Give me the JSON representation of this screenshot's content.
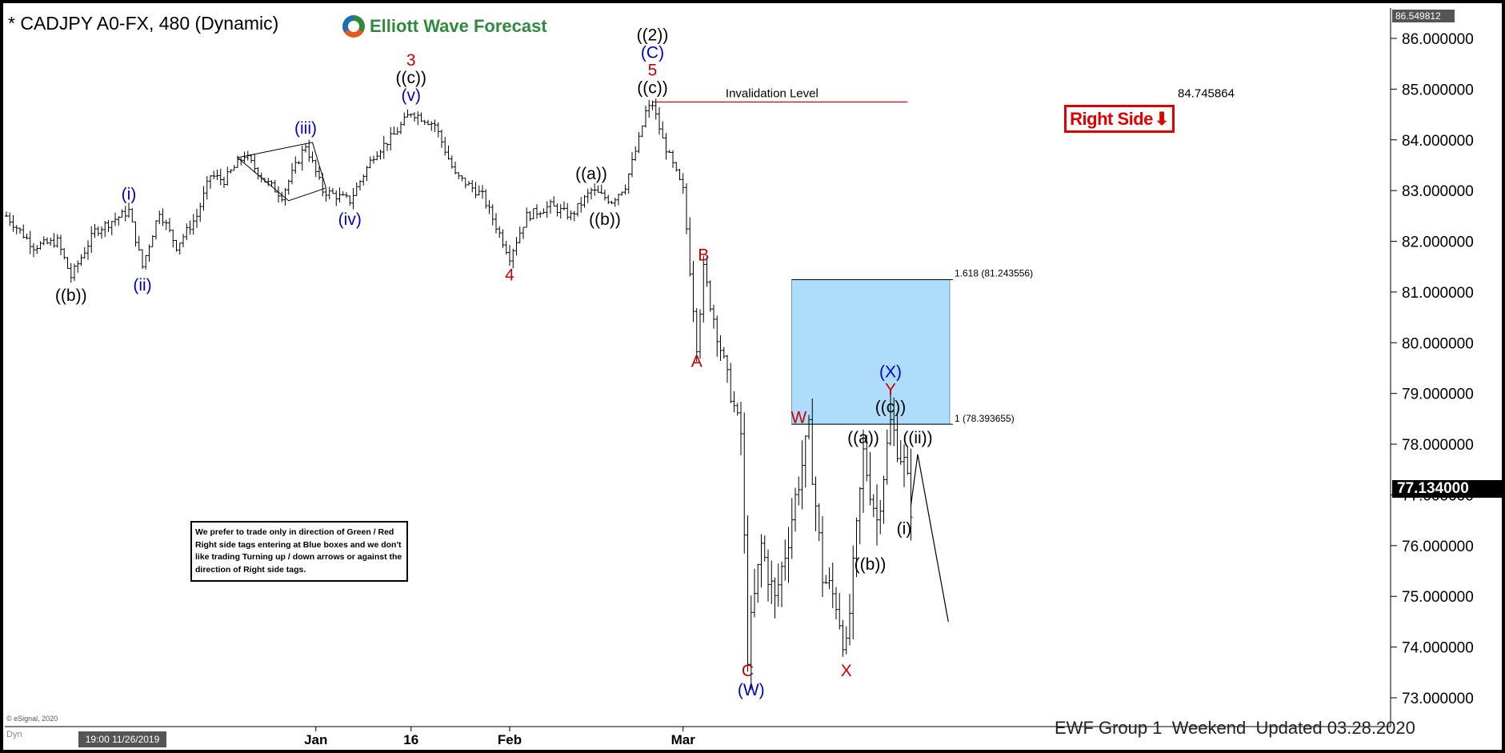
{
  "header": {
    "title": "* CADJPY A0-FX, 480 (Dynamic)",
    "brand": "Elliott Wave Forecast"
  },
  "note": {
    "text": "We prefer to trade only in direction of Green / Red Right side tags entering at Blue boxes and we don't like trading Turning up / down arrows or against the direction of Right side tags."
  },
  "right_side_tag": {
    "label": "Right Side",
    "icon": "down-arrow-icon",
    "color": "#e00000"
  },
  "footer": {
    "text": "EWF Group 1  Weekend  Updated 03.28.2020"
  },
  "watermark": "© eSignal, 2020",
  "status": {
    "dyn": "Dyn",
    "cursor_time": "19:00 11/26/2019"
  },
  "price_tags": {
    "top": "86.549812",
    "last": "77.134000"
  },
  "chart_data": {
    "type": "candlestick",
    "symbol": "CADJPY",
    "timeframe": "480",
    "ylim": [
      72.4,
      86.8
    ],
    "y_ticks": [
      "86.000000",
      "85.000000",
      "84.000000",
      "83.000000",
      "82.000000",
      "81.000000",
      "80.000000",
      "79.000000",
      "78.000000",
      "77.000000",
      "76.000000",
      "75.000000",
      "74.000000",
      "73.000000"
    ],
    "y_tick_values": [
      86,
      85,
      84,
      83,
      82,
      81,
      80,
      79,
      78,
      77,
      76,
      75,
      74,
      73
    ],
    "x_ticks": [
      {
        "label": "Jan",
        "bar": 91
      },
      {
        "label": "16",
        "bar": 119
      },
      {
        "label": "Feb",
        "bar": 148
      },
      {
        "label": "Mar",
        "bar": 199
      }
    ],
    "bar_count": 260,
    "path": [
      [
        0,
        82.5
      ],
      [
        8,
        81.9
      ],
      [
        15,
        82.0
      ],
      [
        19,
        81.3
      ],
      [
        26,
        82.2
      ],
      [
        36,
        82.6
      ],
      [
        40,
        81.5
      ],
      [
        45,
        82.6
      ],
      [
        50,
        81.9
      ],
      [
        56,
        82.5
      ],
      [
        60,
        83.3
      ],
      [
        64,
        83.2
      ],
      [
        70,
        83.7
      ],
      [
        76,
        83.2
      ],
      [
        81,
        82.9
      ],
      [
        88,
        83.9
      ],
      [
        93,
        83.0
      ],
      [
        101,
        82.8
      ],
      [
        108,
        83.7
      ],
      [
        114,
        84.1
      ],
      [
        119,
        84.55
      ],
      [
        126,
        84.3
      ],
      [
        132,
        83.3
      ],
      [
        140,
        82.9
      ],
      [
        148,
        81.7
      ],
      [
        153,
        82.5
      ],
      [
        160,
        82.7
      ],
      [
        166,
        82.5
      ],
      [
        172,
        83.0
      ],
      [
        178,
        82.8
      ],
      [
        182,
        83.1
      ],
      [
        186,
        84.0
      ],
      [
        188,
        84.55
      ],
      [
        190,
        84.7
      ],
      [
        193,
        84.0
      ],
      [
        199,
        83.0
      ],
      [
        203,
        80.0
      ],
      [
        205,
        81.4
      ],
      [
        208,
        80.5
      ],
      [
        213,
        79.0
      ],
      [
        216,
        78.2
      ],
      [
        218,
        73.9
      ],
      [
        222,
        76.0
      ],
      [
        226,
        74.9
      ],
      [
        230,
        76.2
      ],
      [
        233,
        77.3
      ],
      [
        236,
        78.2
      ],
      [
        240,
        75.4
      ],
      [
        244,
        74.9
      ],
      [
        247,
        73.9
      ],
      [
        252,
        77.8
      ],
      [
        256,
        76.5
      ],
      [
        260,
        78.4
      ],
      [
        264,
        77.6
      ],
      [
        266,
        76.8
      ]
    ],
    "projection": [
      [
        266,
        76.8
      ],
      [
        268,
        77.8
      ],
      [
        277,
        74.5
      ]
    ],
    "invalidation": {
      "label": "Invalidation Level",
      "value": 84.745864,
      "value_label": "84.745864",
      "color": "#e00000"
    },
    "target_box": {
      "low": 78.393655,
      "high": 81.243556,
      "low_label": "1 (78.393655)",
      "high_label": "1.618 (81.243556)",
      "color": "#aedcfb"
    },
    "wave_labels": [
      {
        "text": "((b))",
        "bar": 19,
        "price": 81.3,
        "pos": "below",
        "color": "#000"
      },
      {
        "text": "(i)",
        "bar": 36,
        "price": 82.6,
        "pos": "above",
        "color": "#0000cc"
      },
      {
        "text": "(ii)",
        "bar": 40,
        "price": 81.5,
        "pos": "below",
        "color": "#0000cc"
      },
      {
        "text": "(iii)",
        "bar": 88,
        "price": 83.9,
        "pos": "above",
        "color": "#0000cc"
      },
      {
        "text": "(iv)",
        "bar": 101,
        "price": 82.8,
        "pos": "below",
        "color": "#0000cc"
      },
      {
        "text": "3",
        "bar": 119,
        "price": 84.55,
        "pos": "above3",
        "color": "#cc0000"
      },
      {
        "text": "((c))",
        "bar": 119,
        "price": 84.55,
        "pos": "above2",
        "color": "#000"
      },
      {
        "text": "(v)",
        "bar": 119,
        "price": 84.55,
        "pos": "above",
        "color": "#0000cc"
      },
      {
        "text": "4",
        "bar": 148,
        "price": 81.7,
        "pos": "below",
        "color": "#cc0000"
      },
      {
        "text": "((a))",
        "bar": 172,
        "price": 83.0,
        "pos": "above",
        "color": "#000"
      },
      {
        "text": "((b))",
        "bar": 176,
        "price": 82.8,
        "pos": "below",
        "color": "#000"
      },
      {
        "text": "((2))",
        "bar": 190,
        "price": 84.7,
        "pos": "above4",
        "color": "#000"
      },
      {
        "text": "(C)",
        "bar": 190,
        "price": 84.7,
        "pos": "above3",
        "color": "#0000cc"
      },
      {
        "text": "5",
        "bar": 190,
        "price": 84.7,
        "pos": "above2",
        "color": "#cc0000"
      },
      {
        "text": "((c))",
        "bar": 190,
        "price": 84.7,
        "pos": "above",
        "color": "#000"
      },
      {
        "text": "A",
        "bar": 203,
        "price": 80.0,
        "pos": "below",
        "color": "#cc0000"
      },
      {
        "text": "B",
        "bar": 205,
        "price": 81.4,
        "pos": "above",
        "color": "#cc0000"
      },
      {
        "text": "W",
        "bar": 233,
        "price": 78.2,
        "pos": "above",
        "color": "#cc0000"
      },
      {
        "text": "C",
        "bar": 218,
        "price": 73.9,
        "pos": "below",
        "color": "#cc0000"
      },
      {
        "text": "(W)",
        "bar": 219,
        "price": 73.9,
        "pos": "below2",
        "color": "#0000cc"
      },
      {
        "text": "X",
        "bar": 247,
        "price": 73.9,
        "pos": "below",
        "color": "#cc0000"
      },
      {
        "text": "((a))",
        "bar": 252,
        "price": 77.8,
        "pos": "above",
        "color": "#000"
      },
      {
        "text": "((b))",
        "bar": 254,
        "price": 76.0,
        "pos": "below",
        "color": "#000"
      },
      {
        "text": "(X)",
        "bar": 260,
        "price": 78.4,
        "pos": "above3",
        "color": "#0000cc"
      },
      {
        "text": "Y",
        "bar": 260,
        "price": 78.4,
        "pos": "above2",
        "color": "#cc0000"
      },
      {
        "text": "((c))",
        "bar": 260,
        "price": 78.4,
        "pos": "above",
        "color": "#000"
      },
      {
        "text": "((ii))",
        "bar": 268,
        "price": 77.8,
        "pos": "above",
        "color": "#000"
      },
      {
        "text": "(i)",
        "bar": 264,
        "price": 76.7,
        "pos": "below",
        "color": "#000"
      }
    ]
  }
}
